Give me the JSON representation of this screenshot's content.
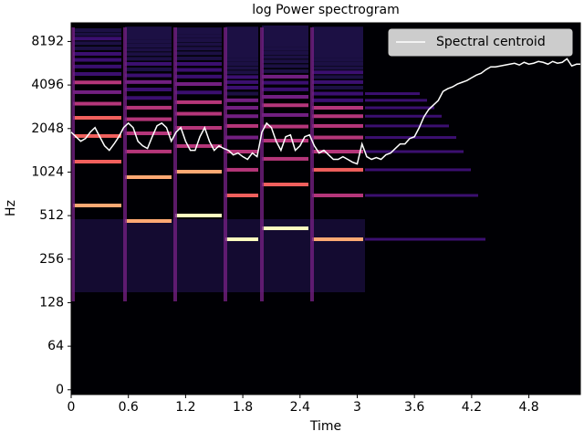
{
  "chart_data": {
    "type": "line",
    "title": "log Power spectrogram",
    "xlabel": "Time",
    "ylabel": "Hz",
    "yscale": "symlog",
    "ylinthresh": 64,
    "xlim": [
      0,
      5.34
    ],
    "ylim": [
      -7,
      11025
    ],
    "xticks": [
      0,
      0.6,
      1.2,
      1.8,
      2.4,
      3,
      3.6,
      4.2,
      4.8
    ],
    "yticks": [
      0,
      64,
      128,
      256,
      512,
      1024,
      2048,
      4096,
      8192
    ],
    "legend": "upper right",
    "series": [
      {
        "name": "Spectral centroid",
        "color": "#ffffff",
        "x": [
          0,
          0.05,
          0.1,
          0.15,
          0.2,
          0.25,
          0.3,
          0.35,
          0.4,
          0.45,
          0.5,
          0.55,
          0.6,
          0.65,
          0.7,
          0.75,
          0.8,
          0.85,
          0.9,
          0.95,
          1.0,
          1.05,
          1.1,
          1.15,
          1.2,
          1.25,
          1.3,
          1.35,
          1.4,
          1.45,
          1.5,
          1.55,
          1.6,
          1.65,
          1.7,
          1.75,
          1.8,
          1.85,
          1.9,
          1.95,
          2.0,
          2.05,
          2.1,
          2.15,
          2.2,
          2.25,
          2.3,
          2.35,
          2.4,
          2.45,
          2.5,
          2.55,
          2.6,
          2.65,
          2.7,
          2.75,
          2.8,
          2.85,
          2.9,
          2.95,
          3.0,
          3.05,
          3.1,
          3.15,
          3.2,
          3.25,
          3.3,
          3.35,
          3.4,
          3.45,
          3.5,
          3.55,
          3.6,
          3.65,
          3.7,
          3.75,
          3.8,
          3.85,
          3.9,
          3.95,
          4.0,
          4.05,
          4.1,
          4.15,
          4.2,
          4.25,
          4.3,
          4.35,
          4.4,
          4.45,
          4.5,
          4.55,
          4.6,
          4.65,
          4.7,
          4.75,
          4.8,
          4.85,
          4.9,
          4.95,
          5.0,
          5.05,
          5.1,
          5.15,
          5.2,
          5.25,
          5.3,
          5.34
        ],
        "values": [
          1933,
          1798,
          1673,
          1747,
          1933,
          2078,
          1798,
          1557,
          1448,
          1603,
          1798,
          2078,
          2233,
          2078,
          1673,
          1557,
          1491,
          1798,
          2139,
          2233,
          2078,
          1673,
          1933,
          2078,
          1673,
          1448,
          1448,
          1798,
          2078,
          1673,
          1448,
          1557,
          1491,
          1448,
          1347,
          1387,
          1309,
          1254,
          1387,
          1309,
          1933,
          2233,
          2078,
          1673,
          1448,
          1798,
          1851,
          1448,
          1557,
          1798,
          1851,
          1557,
          1387,
          1448,
          1347,
          1254,
          1254,
          1309,
          1254,
          1200,
          1166,
          1603,
          1309,
          1254,
          1290,
          1254,
          1347,
          1387,
          1491,
          1603,
          1603,
          1747,
          1798,
          2078,
          2471,
          2774,
          2981,
          3204,
          3702,
          3866,
          3979,
          4156,
          4277,
          4402,
          4598,
          4801,
          4942,
          5236,
          5468,
          5468,
          5548,
          5629,
          5711,
          5793,
          5629,
          5878,
          5711,
          5793,
          5963,
          5878,
          5711,
          5963,
          5793,
          5878,
          6227,
          5548,
          5711,
          5711
        ]
      }
    ]
  }
}
